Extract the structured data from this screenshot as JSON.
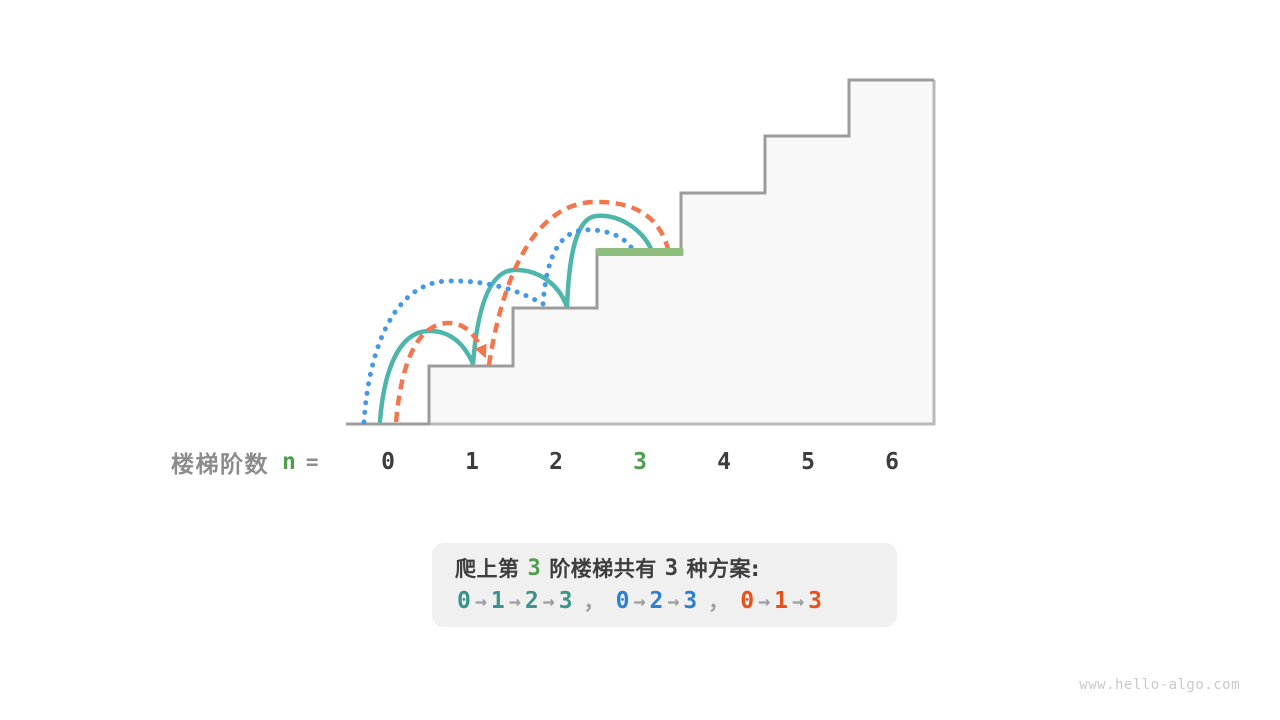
{
  "figure": {
    "axis_label": "楼梯阶数",
    "variable": "n",
    "equals": "=",
    "step_numbers": [
      "0",
      "1",
      "2",
      "3",
      "4",
      "5",
      "6"
    ],
    "highlighted_step": "3",
    "total_stairs_drawn": 6
  },
  "caption": {
    "line1": {
      "pre": "爬上第",
      "step": "3",
      "mid": "阶楼梯共有",
      "count": "3",
      "post": "种方案:"
    },
    "arrow": "→",
    "separator": "，",
    "paths": [
      {
        "name": "route-0-1-2-3",
        "color": "#3A948C",
        "steps": [
          "0",
          "1",
          "2",
          "3"
        ]
      },
      {
        "name": "route-0-2-3",
        "color": "#2D80D0",
        "steps": [
          "0",
          "2",
          "3"
        ]
      },
      {
        "name": "route-0-1-3",
        "color": "#E8511A",
        "steps": [
          "0",
          "1",
          "3"
        ]
      }
    ]
  },
  "watermark": "www.hello-algo.com",
  "colors": {
    "teal_arc": "#4DB5A9",
    "blue_arc": "#4498E8",
    "orange_arc": "#F3764E",
    "green_highlight": "#8EBE7E",
    "green_text": "#4F9E4F",
    "stair_outline": "#9C9C9C",
    "stair_wall": "#B9B9B9",
    "stair_fill": "#F8F8F8",
    "dark_text": "#3D3D3D",
    "gray_label": "#8C8C8C",
    "gray_arrow": "#9E9E9E",
    "caption_bg": "#F0F0F0",
    "watermark_gray": "#C9C9C9"
  }
}
